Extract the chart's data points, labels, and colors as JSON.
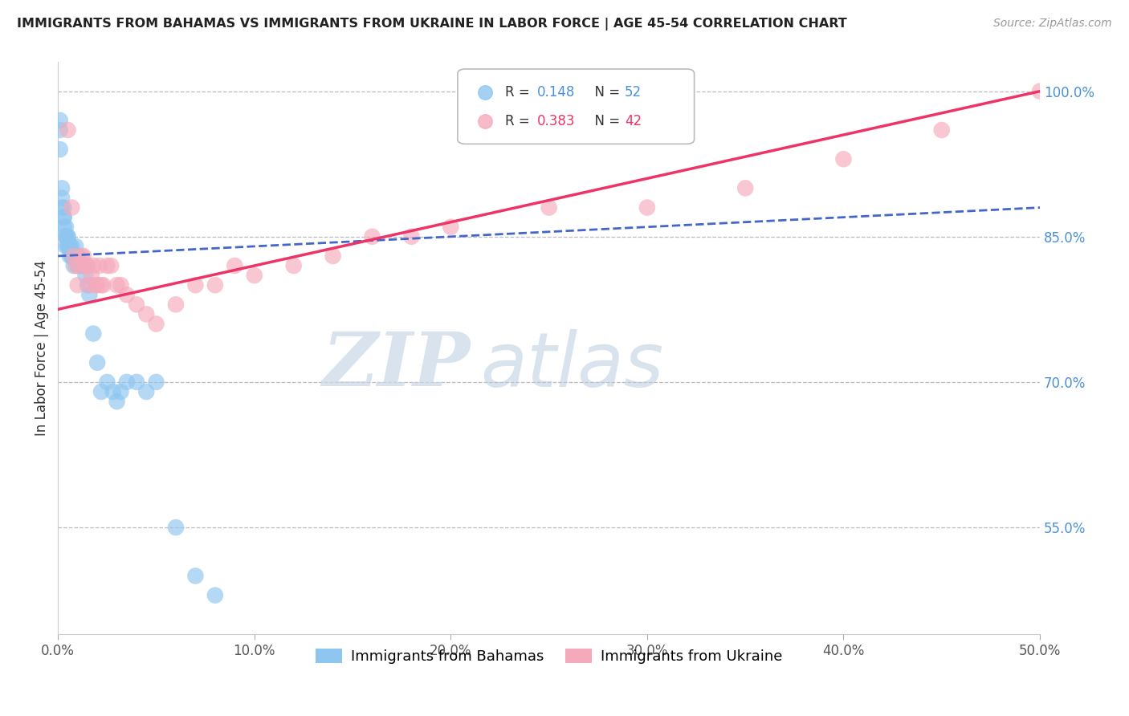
{
  "title": "IMMIGRANTS FROM BAHAMAS VS IMMIGRANTS FROM UKRAINE IN LABOR FORCE | AGE 45-54 CORRELATION CHART",
  "source": "Source: ZipAtlas.com",
  "ylabel": "In Labor Force | Age 45-54",
  "xlim": [
    0.0,
    0.5
  ],
  "ylim": [
    0.44,
    1.03
  ],
  "xticklabels": [
    "0.0%",
    "10.0%",
    "20.0%",
    "30.0%",
    "40.0%",
    "50.0%"
  ],
  "xtick_vals": [
    0.0,
    0.1,
    0.2,
    0.3,
    0.4,
    0.5
  ],
  "yticks_right": [
    0.55,
    0.7,
    0.85,
    1.0
  ],
  "yticks_right_labels": [
    "55.0%",
    "70.0%",
    "85.0%",
    "100.0%"
  ],
  "grid_color": "#bbbbbb",
  "background_color": "#ffffff",
  "blue_color": "#8ec6f0",
  "pink_color": "#f5aabb",
  "blue_line_color": "#4466cc",
  "pink_line_color": "#ee3366",
  "legend_label_blue": "Immigrants from Bahamas",
  "legend_label_pink": "Immigrants from Ukraine",
  "watermark_zip": "ZIP",
  "watermark_atlas": "atlas",
  "bahamas_x": [
    0.001,
    0.001,
    0.001,
    0.002,
    0.002,
    0.002,
    0.003,
    0.003,
    0.003,
    0.003,
    0.004,
    0.004,
    0.004,
    0.004,
    0.005,
    0.005,
    0.005,
    0.005,
    0.006,
    0.006,
    0.006,
    0.007,
    0.007,
    0.007,
    0.008,
    0.008,
    0.008,
    0.009,
    0.009,
    0.01,
    0.01,
    0.01,
    0.011,
    0.012,
    0.013,
    0.014,
    0.015,
    0.016,
    0.018,
    0.02,
    0.022,
    0.025,
    0.028,
    0.03,
    0.032,
    0.035,
    0.04,
    0.045,
    0.05,
    0.06,
    0.07,
    0.08
  ],
  "bahamas_y": [
    0.97,
    0.96,
    0.94,
    0.9,
    0.89,
    0.88,
    0.88,
    0.87,
    0.87,
    0.86,
    0.86,
    0.85,
    0.85,
    0.84,
    0.85,
    0.85,
    0.84,
    0.84,
    0.84,
    0.84,
    0.83,
    0.84,
    0.83,
    0.83,
    0.83,
    0.83,
    0.82,
    0.84,
    0.83,
    0.83,
    0.83,
    0.82,
    0.82,
    0.82,
    0.82,
    0.81,
    0.8,
    0.79,
    0.75,
    0.72,
    0.69,
    0.7,
    0.69,
    0.68,
    0.69,
    0.7,
    0.7,
    0.69,
    0.7,
    0.55,
    0.5,
    0.48
  ],
  "ukraine_x": [
    0.005,
    0.007,
    0.008,
    0.009,
    0.01,
    0.011,
    0.012,
    0.013,
    0.014,
    0.015,
    0.016,
    0.017,
    0.018,
    0.019,
    0.02,
    0.021,
    0.022,
    0.023,
    0.025,
    0.027,
    0.03,
    0.032,
    0.035,
    0.04,
    0.045,
    0.05,
    0.06,
    0.07,
    0.08,
    0.09,
    0.1,
    0.12,
    0.14,
    0.16,
    0.18,
    0.2,
    0.25,
    0.3,
    0.35,
    0.4,
    0.45,
    0.5
  ],
  "ukraine_y": [
    0.96,
    0.88,
    0.83,
    0.82,
    0.8,
    0.82,
    0.83,
    0.83,
    0.82,
    0.82,
    0.8,
    0.81,
    0.82,
    0.8,
    0.8,
    0.82,
    0.8,
    0.8,
    0.82,
    0.82,
    0.8,
    0.8,
    0.79,
    0.78,
    0.77,
    0.76,
    0.78,
    0.8,
    0.8,
    0.82,
    0.81,
    0.82,
    0.83,
    0.85,
    0.85,
    0.86,
    0.88,
    0.88,
    0.9,
    0.93,
    0.96,
    1.0
  ]
}
